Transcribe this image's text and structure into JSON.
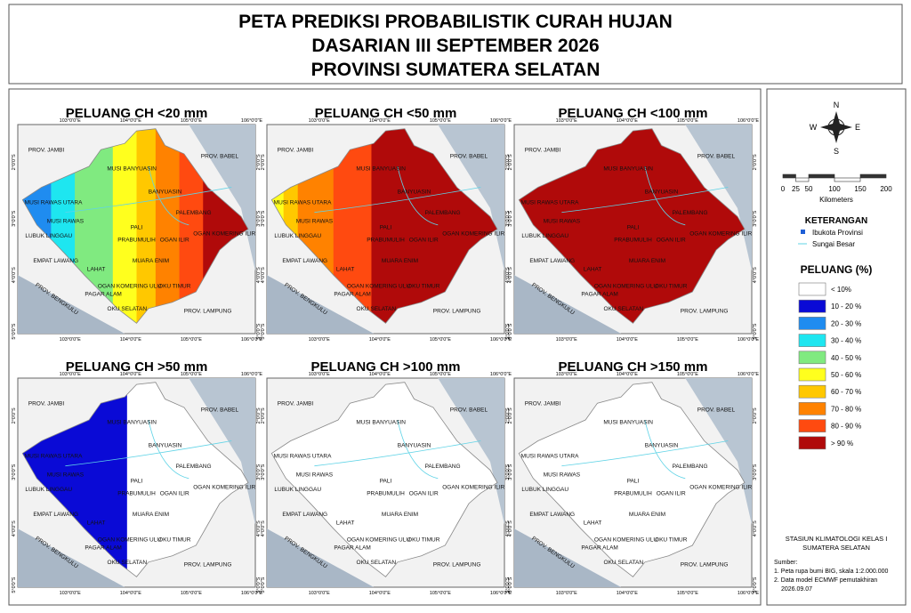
{
  "header": {
    "title_lines": [
      "PETA PREDIKSI PROBABILISTIK CURAH HUJAN",
      "DASARIAN III SEPTEMBER 2026",
      "PROVINSI SUMATERA SELATAN"
    ]
  },
  "panels": [
    {
      "title": "PELUANG CH <20 mm"
    },
    {
      "title": "PELUANG CH <50 mm"
    },
    {
      "title": "PELUANG CH <100 mm"
    },
    {
      "title": "PELUANG CH >50 mm"
    },
    {
      "title": "PELUANG CH >100 mm"
    },
    {
      "title": "PELUANG CH >150 mm"
    }
  ],
  "map_labels": [
    "PROV. JAMBI",
    "MUSI BANYUASIN",
    "PROV. BABEL",
    "BANYUASIN",
    "MUSI RAWAS UTARA",
    "PALEMBANG",
    "MUSI RAWAS",
    "PALI",
    "LUBUK LINGGAU",
    "OGAN KOMERING ILIR",
    "PRABUMULIH",
    "OGAN ILIR",
    "EMPAT LAWANG",
    "LAHAT",
    "MUARA ENIM",
    "OGAN KOMERING ULU",
    "OKU TIMUR",
    "PAGAR ALAM",
    "PROV. BENGKULU",
    "OKU SELATAN",
    "PROV. LAMPUNG"
  ],
  "longitude_labels": [
    "103°0'0\"E",
    "104°0'0\"E",
    "105°0'0\"E",
    "106°0'0\"E"
  ],
  "latitude_labels": [
    "2°0'0\"S",
    "3°0'0\"S",
    "4°0'0\"S",
    "5°0'0\"S"
  ],
  "legend": {
    "compass": {
      "north": "N",
      "south": "S",
      "east": "E",
      "west": "W"
    },
    "scale": {
      "ticks": [
        0,
        25,
        50,
        100,
        150,
        200
      ],
      "unit": "Kilometers"
    },
    "keterangan": {
      "title": "KETERANGAN",
      "items": [
        {
          "label": "Ibukota Provinsi",
          "color": "#1f5fd6"
        },
        {
          "label": "Sungai Besar",
          "color": "#5fd3e6"
        }
      ]
    },
    "peluang": {
      "title": "PELUANG (%)",
      "classes": [
        {
          "label": "< 10%",
          "color": "#ffffff"
        },
        {
          "label": "10 - 20 %",
          "color": "#0a0ad6"
        },
        {
          "label": "20 - 30 %",
          "color": "#1f8cf0"
        },
        {
          "label": "30 - 40 %",
          "color": "#1ee6f0"
        },
        {
          "label": "40 - 50 %",
          "color": "#80ea80"
        },
        {
          "label": "50 - 60 %",
          "color": "#ffff1e"
        },
        {
          "label": "60 - 70 %",
          "color": "#ffc800"
        },
        {
          "label": "70 - 80 %",
          "color": "#ff8200"
        },
        {
          "label": "80 - 90 %",
          "color": "#ff4a10"
        },
        {
          "label": "> 90 %",
          "color": "#b00a0a"
        }
      ]
    },
    "station": [
      "STASIUN KLIMATOLOGI KELAS I",
      "SUMATERA SELATAN"
    ],
    "sources": [
      "Sumber:",
      "1. Peta rupa bumi BIG, skala 1:2.000.000",
      "2. Data model ECMWF pemutakhiran",
      "2026.09.07"
    ]
  }
}
